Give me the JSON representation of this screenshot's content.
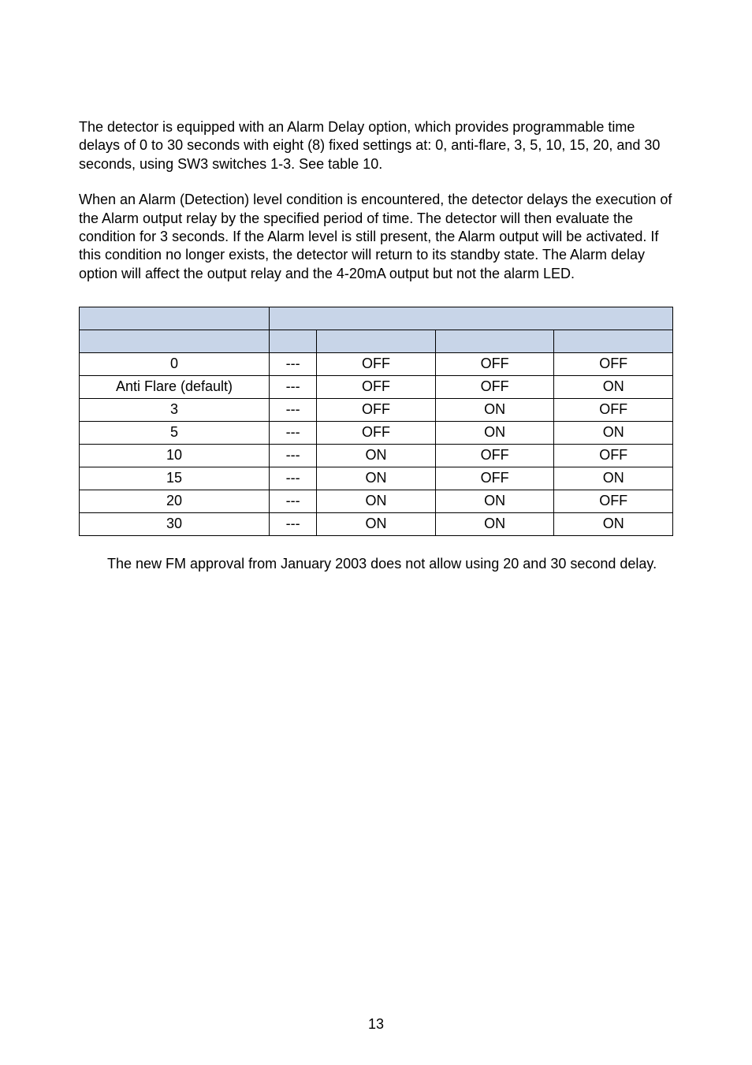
{
  "paragraphs": {
    "p1": "The detector is equipped with an Alarm Delay option, which provides programmable time delays of 0 to 30 seconds with eight (8) fixed settings at: 0, anti-flare, 3, 5, 10, 15, 20, and 30 seconds, using SW3 switches 1-3. See table 10.",
    "p2": "When an Alarm (Detection) level condition is encountered, the detector delays the execution of the Alarm output relay by the specified period of time. The detector will then evaluate the condition for 3 seconds. If the Alarm level is still present, the Alarm output will be activated. If this condition no longer exists, the detector will return to its standby state. The Alarm delay option will affect the output relay and the 4-20mA output but not the alarm LED."
  },
  "table": {
    "rows": [
      {
        "c0": "0",
        "c1": "---",
        "c2": "OFF",
        "c3": "OFF",
        "c4": "OFF"
      },
      {
        "c0": "Anti Flare (default)",
        "c1": "---",
        "c2": "OFF",
        "c3": "OFF",
        "c4": "ON"
      },
      {
        "c0": "3",
        "c1": "---",
        "c2": "OFF",
        "c3": "ON",
        "c4": "OFF"
      },
      {
        "c0": "5",
        "c1": "---",
        "c2": "OFF",
        "c3": "ON",
        "c4": "ON"
      },
      {
        "c0": "10",
        "c1": "---",
        "c2": "ON",
        "c3": "OFF",
        "c4": "OFF"
      },
      {
        "c0": "15",
        "c1": "---",
        "c2": "ON",
        "c3": "OFF",
        "c4": "ON"
      },
      {
        "c0": "20",
        "c1": "---",
        "c2": "ON",
        "c3": "ON",
        "c4": "OFF"
      },
      {
        "c0": "30",
        "c1": "---",
        "c2": "ON",
        "c3": "ON",
        "c4": "ON"
      }
    ]
  },
  "note": "The new FM approval from January 2003 does not allow using 20 and 30 second delay.",
  "pagenum": "13",
  "colors": {
    "header_bg": "#c8d5e8",
    "border": "#000000",
    "text": "#000000",
    "page_bg": "#ffffff"
  }
}
